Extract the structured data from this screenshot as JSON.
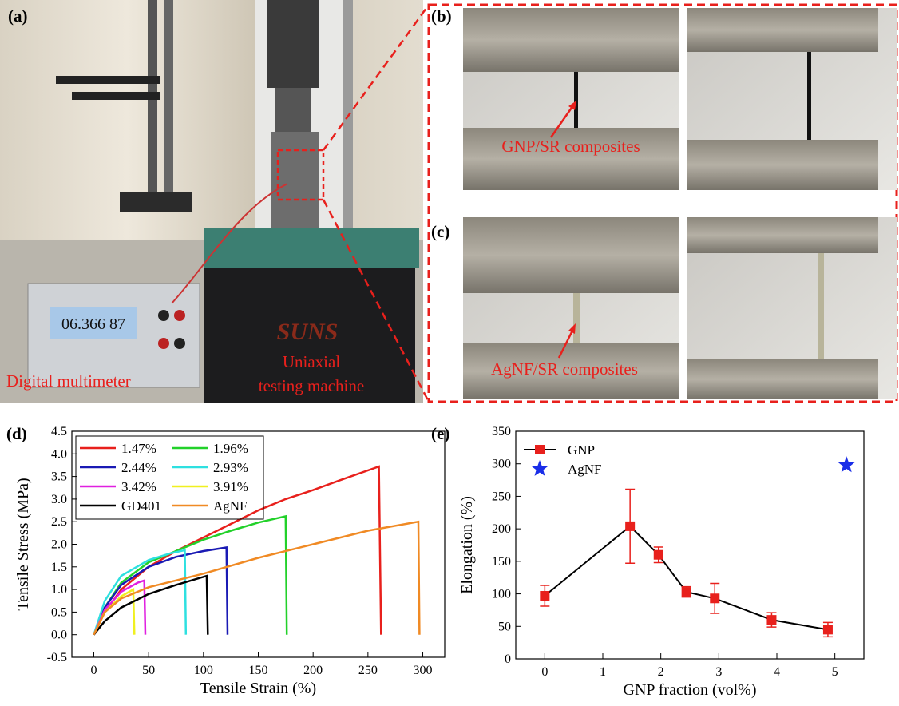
{
  "photos": {
    "a": {
      "label": "(a)",
      "multimeter": "Digital multimeter",
      "machine_line1": "Uniaxial",
      "machine_line2": "testing machine",
      "display": "06.366 87",
      "logo": "SUNS"
    },
    "b": {
      "label": "(b)",
      "annotation": "GNP/SR composites"
    },
    "c": {
      "label": "(c)",
      "annotation": "AgNF/SR composites"
    }
  },
  "chart_data": [
    {
      "type": "line",
      "panel_label": "(d)",
      "xlabel": "Tensile Strain (%)",
      "ylabel": "Tensile Stress (MPa)",
      "xlim": [
        -20,
        320
      ],
      "xticks": [
        0,
        50,
        100,
        150,
        200,
        250,
        300
      ],
      "ylim": [
        -0.5,
        4.5
      ],
      "yticks": [
        -0.5,
        {
          "value": 0,
          "label": "0.0"
        },
        0.5,
        {
          "value": 1,
          "label": "1.0"
        },
        1.5,
        {
          "value": 2,
          "label": "2.0"
        },
        2.5,
        {
          "value": 3,
          "label": "3.0"
        },
        3.5,
        {
          "value": 4,
          "label": "4.0"
        },
        4.5
      ],
      "legend": "upper left",
      "series": [
        {
          "name": "1.47%",
          "color": "#e8201c",
          "x": [
            0,
            10,
            25,
            50,
            75,
            100,
            125,
            150,
            175,
            200,
            225,
            260,
            262
          ],
          "values": [
            0,
            0.5,
            1.0,
            1.5,
            1.85,
            2.15,
            2.45,
            2.75,
            3.0,
            3.2,
            3.42,
            3.72,
            0
          ]
        },
        {
          "name": "1.96%",
          "color": "#22d12a",
          "x": [
            0,
            10,
            25,
            50,
            75,
            100,
            125,
            150,
            175,
            176
          ],
          "values": [
            0,
            0.6,
            1.15,
            1.6,
            1.85,
            2.1,
            2.3,
            2.48,
            2.62,
            0
          ]
        },
        {
          "name": "2.44%",
          "color": "#1a1ab4",
          "x": [
            0,
            10,
            25,
            50,
            75,
            100,
            121,
            122
          ],
          "values": [
            0,
            0.6,
            1.1,
            1.5,
            1.72,
            1.85,
            1.93,
            0
          ]
        },
        {
          "name": "2.93%",
          "color": "#2ee0e0",
          "x": [
            0,
            10,
            25,
            50,
            70,
            83,
            84
          ],
          "values": [
            0,
            0.75,
            1.3,
            1.65,
            1.8,
            1.87,
            0
          ]
        },
        {
          "name": "3.42%",
          "color": "#e020e0",
          "x": [
            0,
            10,
            25,
            40,
            46,
            47
          ],
          "values": [
            0,
            0.55,
            0.95,
            1.15,
            1.2,
            0
          ]
        },
        {
          "name": "3.91%",
          "color": "#f0f020",
          "x": [
            0,
            10,
            25,
            36,
            37
          ],
          "values": [
            0,
            0.5,
            0.85,
            1.0,
            0
          ]
        },
        {
          "name": "GD401",
          "color": "#000000",
          "x": [
            0,
            10,
            25,
            50,
            75,
            103,
            104
          ],
          "values": [
            0,
            0.3,
            0.6,
            0.9,
            1.1,
            1.3,
            0
          ]
        },
        {
          "name": "AgNF",
          "color": "#f08a24",
          "x": [
            0,
            10,
            25,
            50,
            100,
            150,
            200,
            250,
            296,
            297
          ],
          "values": [
            0,
            0.5,
            0.8,
            1.05,
            1.35,
            1.7,
            2.0,
            2.3,
            2.5,
            0
          ]
        }
      ]
    },
    {
      "type": "errorbar",
      "panel_label": "(e)",
      "xlabel": "GNP fraction (vol%)",
      "ylabel": "Elongation (%)",
      "xlim": [
        -0.5,
        5.5
      ],
      "xticks": [
        0,
        1,
        2,
        3,
        4,
        5
      ],
      "ylim": [
        0,
        350
      ],
      "yticks": [
        0,
        50,
        100,
        150,
        200,
        250,
        300,
        350
      ],
      "legend": "upper left",
      "series": [
        {
          "name": "GNP",
          "color": "#e8201c",
          "marker": "square",
          "line": true,
          "x": [
            0,
            1.47,
            1.96,
            2.44,
            2.93,
            3.91,
            4.88
          ],
          "values": [
            97,
            204,
            160,
            103,
            93,
            60,
            45
          ],
          "errors": [
            16,
            57,
            12,
            8,
            23,
            11,
            11
          ]
        },
        {
          "name": "AgNF",
          "color": "#1a2ee8",
          "marker": "star",
          "line": false,
          "x": [
            5.2
          ],
          "values": [
            298
          ]
        }
      ]
    }
  ]
}
